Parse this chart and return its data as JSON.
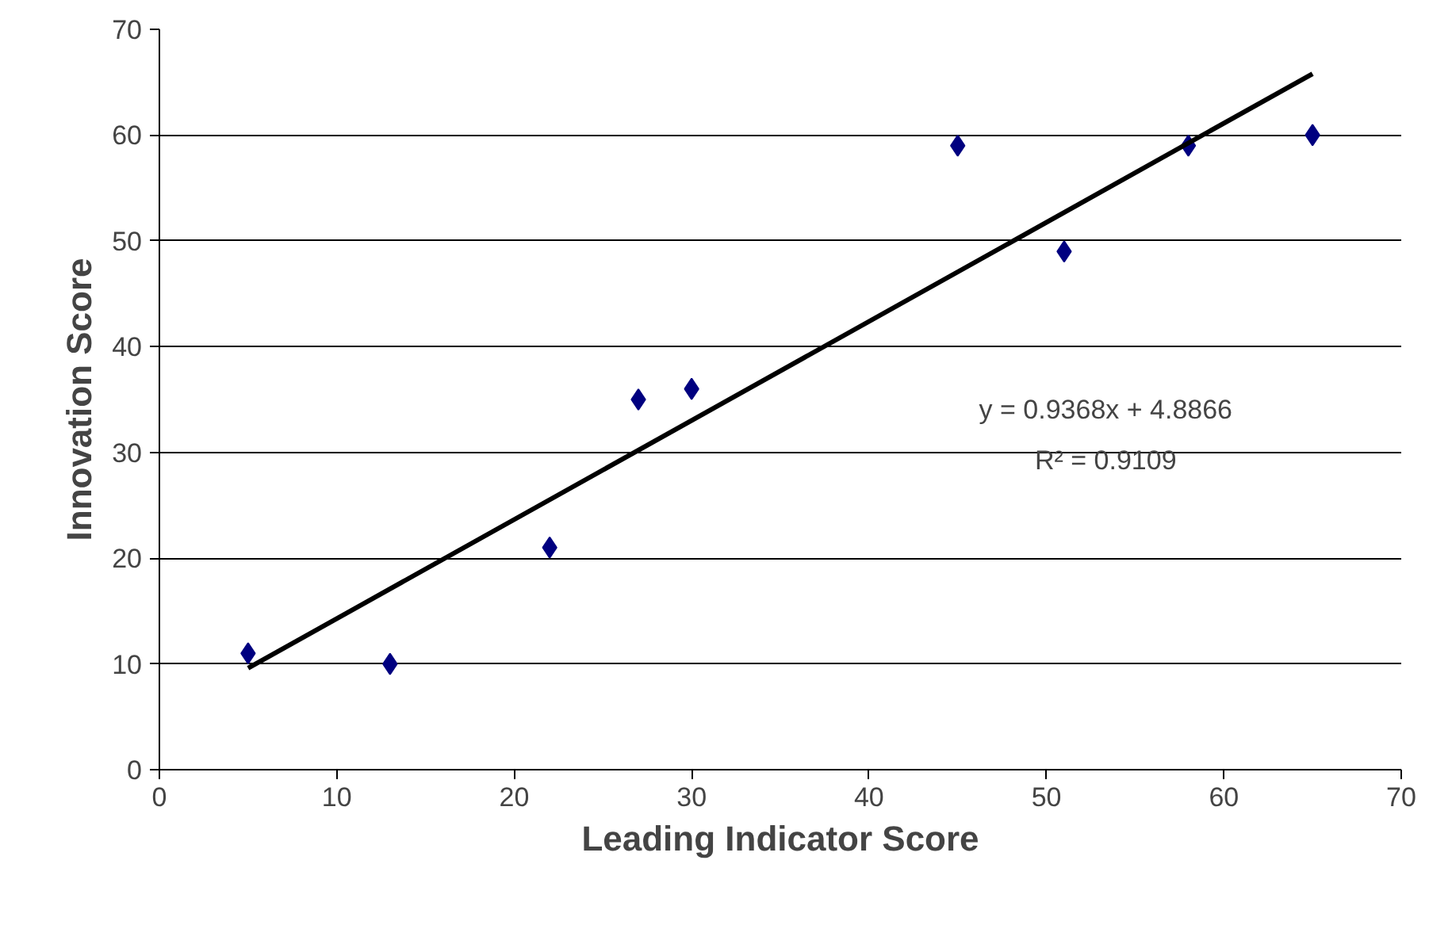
{
  "chart_data": {
    "type": "scatter",
    "xlabel": "Leading Indicator Score",
    "ylabel": "Innovation Score",
    "x": [
      5,
      13,
      22,
      27,
      30,
      45,
      51,
      58,
      65
    ],
    "series": [
      {
        "color": "#000080",
        "values": [
          11,
          10,
          21,
          35,
          36,
          59,
          49,
          59,
          60
        ],
        "marker": "diamond"
      },
      {
        "type": "line",
        "color": "#000000",
        "x": [
          5,
          65
        ],
        "values": [
          9.6,
          65.8
        ],
        "marker": "none"
      }
    ],
    "annotations": [
      "y = 0.9368x + 4.8866",
      "R² = 0.9109"
    ],
    "xlim": [
      0,
      70
    ],
    "ylim": [
      0,
      70
    ],
    "xticks": [
      0,
      10,
      20,
      30,
      40,
      50,
      60,
      70
    ],
    "yticks": [
      0,
      10,
      20,
      30,
      40,
      50,
      60,
      70
    ],
    "grid": "y"
  }
}
